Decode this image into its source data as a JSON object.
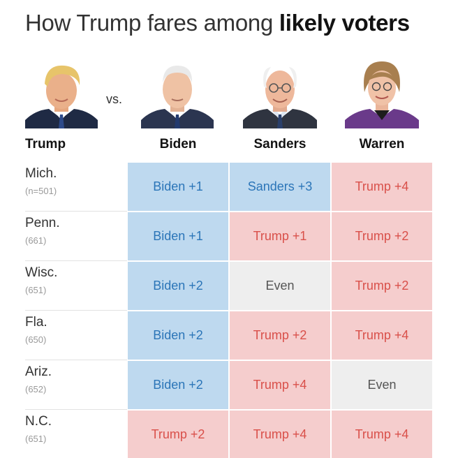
{
  "title": {
    "prefix": "How Trump fares among ",
    "emphasis": "likely voters"
  },
  "vs_label": "vs.",
  "columns": [
    "Biden",
    "Sanders",
    "Warren"
  ],
  "row_header": "Trump",
  "chart_data": {
    "type": "table",
    "title": "How Trump fares among likely voters",
    "columns": [
      "Biden",
      "Sanders",
      "Warren"
    ],
    "rows": [
      {
        "state": "Mich.",
        "sample": "(n=501)",
        "cells": [
          {
            "label": "Biden +1",
            "leader": "biden",
            "margin": 1
          },
          {
            "label": "Sanders +3",
            "leader": "democrat",
            "margin": 3
          },
          {
            "label": "Trump +4",
            "leader": "trump",
            "margin": 4
          }
        ]
      },
      {
        "state": "Penn.",
        "sample": "(661)",
        "cells": [
          {
            "label": "Biden +1",
            "leader": "biden",
            "margin": 1
          },
          {
            "label": "Trump +1",
            "leader": "trump",
            "margin": 1
          },
          {
            "label": "Trump +2",
            "leader": "trump",
            "margin": 2
          }
        ]
      },
      {
        "state": "Wisc.",
        "sample": "(651)",
        "cells": [
          {
            "label": "Biden +2",
            "leader": "biden",
            "margin": 2
          },
          {
            "label": "Even",
            "leader": "even",
            "margin": 0
          },
          {
            "label": "Trump +2",
            "leader": "trump",
            "margin": 2
          }
        ]
      },
      {
        "state": "Fla.",
        "sample": "(650)",
        "cells": [
          {
            "label": "Biden +2",
            "leader": "biden",
            "margin": 2
          },
          {
            "label": "Trump +2",
            "leader": "trump",
            "margin": 2
          },
          {
            "label": "Trump +4",
            "leader": "trump",
            "margin": 4
          }
        ]
      },
      {
        "state": "Ariz.",
        "sample": "(652)",
        "cells": [
          {
            "label": "Biden +2",
            "leader": "biden",
            "margin": 2
          },
          {
            "label": "Trump +4",
            "leader": "trump",
            "margin": 4
          },
          {
            "label": "Even",
            "leader": "even",
            "margin": 0
          }
        ]
      },
      {
        "state": "N.C.",
        "sample": "(651)",
        "cells": [
          {
            "label": "Trump +2",
            "leader": "trump",
            "margin": 2
          },
          {
            "label": "Trump +4",
            "leader": "trump",
            "margin": 4
          },
          {
            "label": "Trump +4",
            "leader": "trump",
            "margin": 4
          }
        ]
      }
    ]
  },
  "colors": {
    "democrat_fill": "#bed9ef",
    "democrat_text": "#2b75b8",
    "republican_fill": "#f5cdcd",
    "republican_text": "#d9504a",
    "even_fill": "#eeeeee",
    "even_text": "#555555"
  }
}
